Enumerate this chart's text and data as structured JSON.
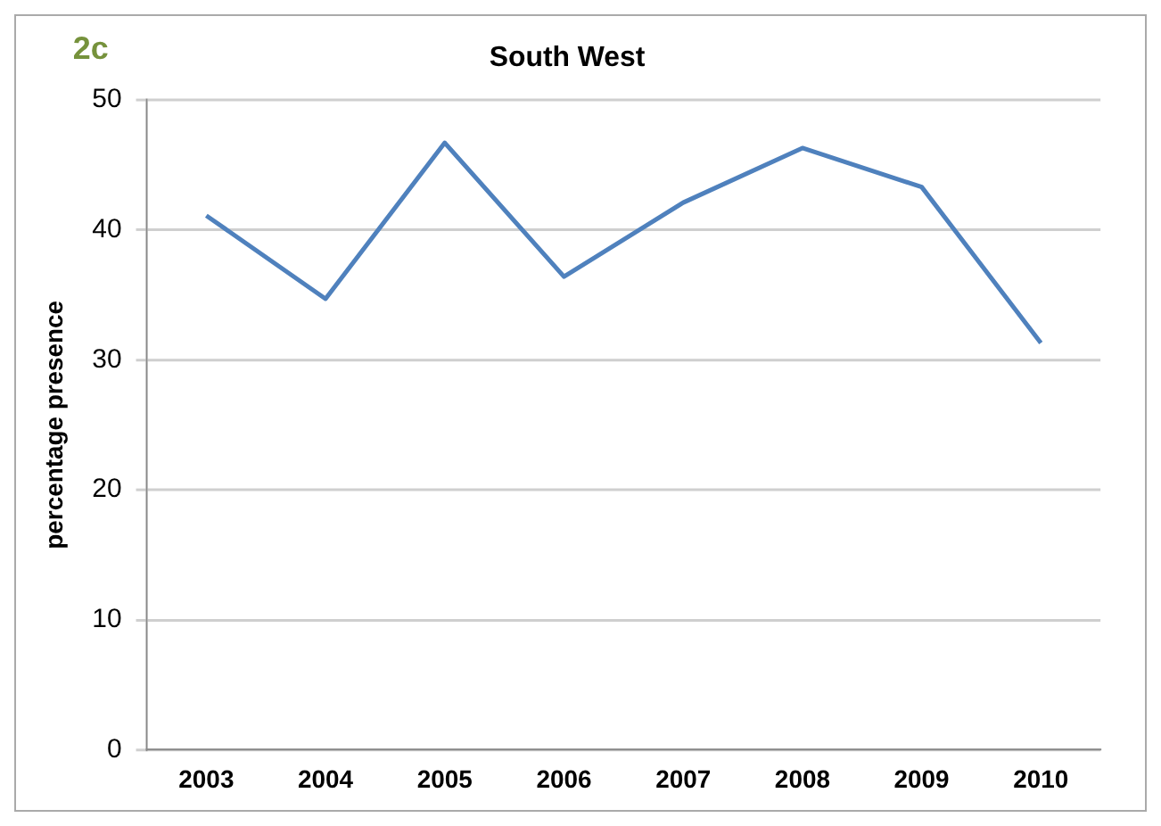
{
  "chart_data": {
    "type": "line",
    "title": "South West",
    "ylabel": "percentage presence",
    "categories": [
      "2003",
      "2004",
      "2005",
      "2006",
      "2007",
      "2008",
      "2009",
      "2010"
    ],
    "series": [
      {
        "color": "#4f81bd",
        "values": [
          41.1,
          34.7,
          46.7,
          36.4,
          42.1,
          46.3,
          43.3,
          31.3
        ]
      }
    ],
    "ylim": [
      0,
      50
    ],
    "yticks": [
      0,
      10,
      20,
      30,
      40,
      50
    ],
    "grid": "y",
    "legend": false,
    "marker": "none",
    "line_style": "solid",
    "annotations": [
      "2c"
    ]
  }
}
